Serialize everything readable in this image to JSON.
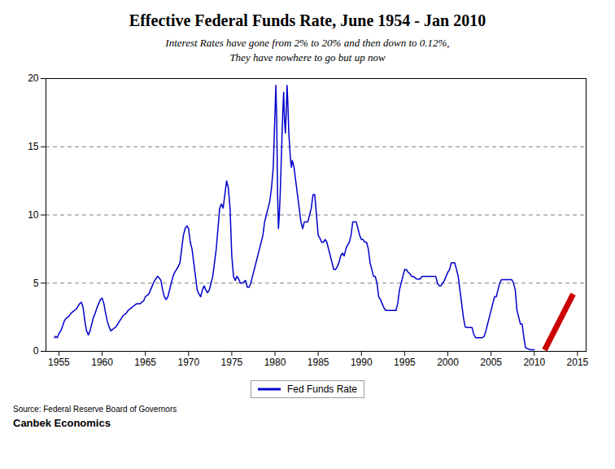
{
  "chart_data": {
    "type": "line",
    "title": "Effective Federal Funds Rate, June 1954 - Jan 2010",
    "subtitle": [
      "Interest Rates have gone from 2% to 20% and then down to 0.12%,",
      "They have nowhere to go but up now"
    ],
    "annotations": [
      "Source: Federal Reserve Board of Governors",
      "Canbek Economics"
    ],
    "xlim": [
      1953.5,
      2016
    ],
    "xticks": [
      1955,
      1960,
      1965,
      1970,
      1975,
      1980,
      1985,
      1990,
      1995,
      2000,
      2005,
      2010,
      2015
    ],
    "ylim": [
      0,
      20
    ],
    "yticks": [
      0,
      5,
      10,
      15,
      20
    ],
    "grid": true,
    "legend": "bottom",
    "series": [
      {
        "name": "Fed Funds Rate",
        "color": "#0000CD",
        "x": [
          1954.5,
          1954.6,
          1954.8,
          1955.0,
          1955.2,
          1955.4,
          1955.6,
          1955.8,
          1956.0,
          1956.2,
          1956.4,
          1956.6,
          1956.8,
          1957.0,
          1957.2,
          1957.4,
          1957.6,
          1957.8,
          1958.0,
          1958.2,
          1958.4,
          1958.6,
          1958.8,
          1959.0,
          1959.2,
          1959.4,
          1959.6,
          1959.8,
          1960.0,
          1960.2,
          1960.4,
          1960.6,
          1960.8,
          1961.0,
          1961.2,
          1961.4,
          1961.6,
          1961.8,
          1962.0,
          1962.2,
          1962.4,
          1962.6,
          1962.8,
          1963.0,
          1963.2,
          1963.4,
          1963.6,
          1963.8,
          1964.0,
          1964.2,
          1964.4,
          1964.6,
          1964.8,
          1965.0,
          1965.2,
          1965.4,
          1965.6,
          1965.8,
          1966.0,
          1966.2,
          1966.4,
          1966.6,
          1966.8,
          1967.0,
          1967.2,
          1967.4,
          1967.6,
          1967.8,
          1968.0,
          1968.2,
          1968.4,
          1968.6,
          1968.8,
          1969.0,
          1969.2,
          1969.4,
          1969.6,
          1969.8,
          1970.0,
          1970.2,
          1970.4,
          1970.6,
          1970.8,
          1971.0,
          1971.2,
          1971.4,
          1971.6,
          1971.8,
          1972.0,
          1972.2,
          1972.4,
          1972.6,
          1972.8,
          1973.0,
          1973.2,
          1973.4,
          1973.6,
          1973.8,
          1974.0,
          1974.2,
          1974.4,
          1974.6,
          1974.8,
          1975.0,
          1975.2,
          1975.4,
          1975.6,
          1975.8,
          1976.0,
          1976.2,
          1976.4,
          1976.6,
          1976.8,
          1977.0,
          1977.2,
          1977.4,
          1977.6,
          1977.8,
          1978.0,
          1978.2,
          1978.4,
          1978.6,
          1978.8,
          1979.0,
          1979.2,
          1979.4,
          1979.6,
          1979.8,
          1980.0,
          1980.1,
          1980.2,
          1980.3,
          1980.4,
          1980.5,
          1980.6,
          1980.7,
          1980.8,
          1980.9,
          1981.0,
          1981.1,
          1981.2,
          1981.3,
          1981.4,
          1981.5,
          1981.6,
          1981.7,
          1981.8,
          1981.9,
          1982.0,
          1982.2,
          1982.4,
          1982.6,
          1982.8,
          1983.0,
          1983.2,
          1983.4,
          1983.6,
          1983.8,
          1984.0,
          1984.2,
          1984.4,
          1984.6,
          1984.8,
          1985.0,
          1985.2,
          1985.4,
          1985.6,
          1985.8,
          1986.0,
          1986.2,
          1986.4,
          1986.6,
          1986.8,
          1987.0,
          1987.2,
          1987.4,
          1987.6,
          1987.8,
          1988.0,
          1988.2,
          1988.4,
          1988.6,
          1988.8,
          1989.0,
          1989.2,
          1989.4,
          1989.6,
          1989.8,
          1990.0,
          1990.2,
          1990.4,
          1990.6,
          1990.8,
          1991.0,
          1991.2,
          1991.4,
          1991.6,
          1991.8,
          1992.0,
          1992.2,
          1992.4,
          1992.6,
          1992.8,
          1993.0,
          1993.2,
          1993.4,
          1993.6,
          1993.8,
          1994.0,
          1994.2,
          1994.4,
          1994.6,
          1994.8,
          1995.0,
          1995.2,
          1995.4,
          1995.6,
          1995.8,
          1996.0,
          1996.2,
          1996.4,
          1996.6,
          1996.8,
          1997.0,
          1997.2,
          1997.4,
          1997.6,
          1997.8,
          1998.0,
          1998.2,
          1998.4,
          1998.6,
          1998.8,
          1999.0,
          1999.2,
          1999.4,
          1999.6,
          1999.8,
          2000.0,
          2000.2,
          2000.4,
          2000.6,
          2000.8,
          2001.0,
          2001.2,
          2001.4,
          2001.6,
          2001.8,
          2002.0,
          2002.2,
          2002.4,
          2002.6,
          2002.8,
          2003.0,
          2003.2,
          2003.4,
          2003.6,
          2003.8,
          2004.0,
          2004.2,
          2004.4,
          2004.6,
          2004.8,
          2005.0,
          2005.2,
          2005.4,
          2005.6,
          2005.8,
          2006.0,
          2006.2,
          2006.4,
          2006.6,
          2006.8,
          2007.0,
          2007.2,
          2007.4,
          2007.6,
          2007.8,
          2008.0,
          2008.2,
          2008.4,
          2008.6,
          2008.8,
          2009.0,
          2009.2,
          2009.4,
          2009.6,
          2009.8,
          2010.0
        ],
        "values": [
          1.0,
          1.1,
          1.0,
          1.3,
          1.5,
          1.8,
          2.2,
          2.4,
          2.5,
          2.6,
          2.8,
          2.9,
          3.0,
          3.1,
          3.3,
          3.5,
          3.6,
          3.2,
          2.2,
          1.5,
          1.2,
          1.5,
          2.0,
          2.5,
          2.8,
          3.2,
          3.5,
          3.8,
          3.9,
          3.5,
          2.8,
          2.2,
          1.8,
          1.5,
          1.6,
          1.7,
          1.8,
          2.0,
          2.2,
          2.4,
          2.6,
          2.7,
          2.8,
          3.0,
          3.1,
          3.2,
          3.3,
          3.4,
          3.5,
          3.5,
          3.5,
          3.6,
          3.7,
          4.0,
          4.1,
          4.2,
          4.5,
          4.8,
          5.1,
          5.3,
          5.5,
          5.4,
          5.2,
          4.5,
          4.0,
          3.8,
          4.0,
          4.5,
          5.0,
          5.5,
          5.8,
          6.0,
          6.2,
          6.5,
          7.5,
          8.5,
          9.0,
          9.2,
          9.0,
          8.0,
          7.5,
          6.5,
          5.5,
          4.5,
          4.2,
          4.0,
          4.5,
          4.8,
          4.5,
          4.3,
          4.5,
          5.0,
          5.5,
          6.5,
          7.5,
          9.0,
          10.5,
          10.8,
          10.5,
          11.5,
          12.5,
          12.0,
          10.5,
          7.0,
          5.5,
          5.2,
          5.5,
          5.3,
          5.0,
          5.0,
          5.1,
          5.2,
          4.7,
          4.7,
          5.0,
          5.5,
          6.0,
          6.5,
          7.0,
          7.5,
          8.0,
          8.5,
          9.5,
          10.0,
          10.5,
          11.0,
          12.0,
          13.5,
          17.5,
          19.5,
          17.0,
          11.5,
          9.0,
          10.0,
          11.5,
          13.5,
          15.5,
          17.5,
          19.0,
          17.0,
          16.0,
          17.5,
          19.5,
          18.0,
          16.0,
          15.0,
          14.0,
          13.5,
          14.0,
          13.5,
          12.5,
          11.5,
          10.5,
          9.5,
          9.0,
          9.5,
          9.5,
          9.5,
          10.0,
          10.5,
          11.5,
          11.5,
          10.0,
          8.5,
          8.3,
          8.0,
          8.0,
          8.2,
          8.0,
          7.5,
          7.0,
          6.5,
          6.0,
          6.0,
          6.2,
          6.5,
          7.0,
          7.2,
          7.0,
          7.5,
          7.8,
          8.0,
          8.5,
          9.5,
          9.5,
          9.5,
          9.0,
          8.5,
          8.2,
          8.2,
          8.0,
          8.0,
          7.5,
          6.5,
          6.0,
          5.5,
          5.5,
          5.0,
          4.0,
          3.8,
          3.5,
          3.2,
          3.0,
          3.0,
          3.0,
          3.0,
          3.0,
          3.0,
          3.0,
          3.5,
          4.5,
          5.0,
          5.5,
          6.0,
          6.0,
          5.8,
          5.7,
          5.5,
          5.5,
          5.4,
          5.3,
          5.3,
          5.3,
          5.5,
          5.5,
          5.5,
          5.5,
          5.5,
          5.5,
          5.5,
          5.5,
          5.5,
          5.0,
          4.8,
          4.8,
          5.0,
          5.2,
          5.5,
          5.8,
          6.0,
          6.5,
          6.5,
          6.5,
          6.0,
          5.5,
          4.5,
          3.5,
          2.5,
          1.8,
          1.75,
          1.75,
          1.75,
          1.75,
          1.25,
          1.0,
          1.0,
          1.0,
          1.0,
          1.0,
          1.1,
          1.5,
          2.0,
          2.5,
          3.0,
          3.5,
          4.0,
          4.0,
          4.5,
          5.0,
          5.25,
          5.25,
          5.25,
          5.25,
          5.25,
          5.25,
          5.25,
          5.0,
          4.5,
          3.0,
          2.5,
          2.0,
          2.0,
          1.0,
          0.25,
          0.2,
          0.15,
          0.12,
          0.12,
          0.12
        ]
      },
      {
        "color": "#CC0000",
        "x": [
          2011.2,
          2014.5
        ],
        "values": [
          0.1,
          4.2
        ]
      }
    ]
  }
}
